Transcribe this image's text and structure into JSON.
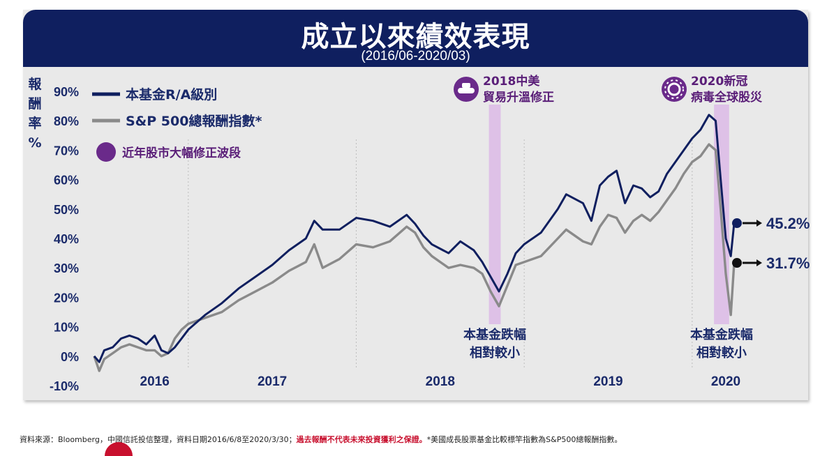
{
  "header": {
    "title": "成立以來績效表現",
    "subtitle": "(2016/06-2020/03)"
  },
  "colors": {
    "fund": "#0f1f5f",
    "sp500": "#8a8a8a",
    "band": "#d9b3e6",
    "legend_dot": "#6a2a8a",
    "annotation": "#5a1e78",
    "banner_bg": "#0f1f5f",
    "warning": "#c8102e"
  },
  "chart_data": {
    "type": "line",
    "title": "成立以來績效表現",
    "subtitle": "(2016/06-2020/03)",
    "ylabel": "報酬率%",
    "xlabel": "",
    "ylim": [
      -10,
      90
    ],
    "y_ticks": [
      "90%",
      "80%",
      "70%",
      "60%",
      "50%",
      "40%",
      "30%",
      "20%",
      "10%",
      "0%",
      "-10%"
    ],
    "y_tick_values": [
      90,
      80,
      70,
      60,
      50,
      40,
      30,
      20,
      10,
      0,
      -10
    ],
    "x_tick_labels": [
      "2016",
      "2017",
      "2018",
      "2019",
      "2020"
    ],
    "x_tick_positions": [
      2016.8,
      2017.5,
      2018.5,
      2019.5,
      2020.2
    ],
    "xlim": [
      2016.44,
      2020.25
    ],
    "x_gridlines": [
      2017.0,
      2018.0,
      2019.0,
      2020.0
    ],
    "legend": [
      {
        "label": "本基金R/A級別",
        "type": "line",
        "color": "#0f1f5f"
      },
      {
        "label": "S&P 500總報酬指數*",
        "type": "line",
        "color": "#8a8a8a"
      },
      {
        "label": "近年股市大幅修正波段",
        "type": "dot",
        "color": "#6a2a8a"
      }
    ],
    "legend_position": "top-left",
    "correction_bands": [
      {
        "from": 2018.79,
        "to": 2018.86,
        "label_top": "2018中美貿易升溫修正",
        "label_bottom": "本基金跌幅相對較小",
        "icon": "tank-icon"
      },
      {
        "from": 2020.13,
        "to": 2020.22,
        "label_top": "2020新冠病毒全球股災",
        "label_bottom": "本基金跌幅相對較小",
        "icon": "virus-icon"
      }
    ],
    "series": [
      {
        "name": "本基金R/A級別",
        "end_label": "45.2%",
        "points": [
          [
            2016.44,
            0
          ],
          [
            2016.47,
            -2
          ],
          [
            2016.5,
            2
          ],
          [
            2016.55,
            3
          ],
          [
            2016.6,
            6
          ],
          [
            2016.65,
            7
          ],
          [
            2016.7,
            6
          ],
          [
            2016.75,
            4
          ],
          [
            2016.8,
            7
          ],
          [
            2016.84,
            2
          ],
          [
            2016.88,
            1
          ],
          [
            2016.92,
            3
          ],
          [
            2016.96,
            6
          ],
          [
            2017.0,
            9
          ],
          [
            2017.1,
            14
          ],
          [
            2017.2,
            18
          ],
          [
            2017.3,
            23
          ],
          [
            2017.4,
            27
          ],
          [
            2017.5,
            31
          ],
          [
            2017.6,
            36
          ],
          [
            2017.7,
            40
          ],
          [
            2017.75,
            46
          ],
          [
            2017.8,
            43
          ],
          [
            2017.9,
            43
          ],
          [
            2018.0,
            47
          ],
          [
            2018.1,
            46
          ],
          [
            2018.2,
            44
          ],
          [
            2018.3,
            48
          ],
          [
            2018.35,
            45
          ],
          [
            2018.4,
            41
          ],
          [
            2018.45,
            38
          ],
          [
            2018.55,
            35
          ],
          [
            2018.62,
            39
          ],
          [
            2018.7,
            36
          ],
          [
            2018.75,
            32
          ],
          [
            2018.8,
            27
          ],
          [
            2018.85,
            22
          ],
          [
            2018.9,
            28
          ],
          [
            2018.95,
            35
          ],
          [
            2019.0,
            38
          ],
          [
            2019.1,
            42
          ],
          [
            2019.2,
            50
          ],
          [
            2019.25,
            55
          ],
          [
            2019.35,
            52
          ],
          [
            2019.4,
            46
          ],
          [
            2019.45,
            58
          ],
          [
            2019.5,
            61
          ],
          [
            2019.55,
            63
          ],
          [
            2019.6,
            52
          ],
          [
            2019.65,
            58
          ],
          [
            2019.7,
            57
          ],
          [
            2019.75,
            54
          ],
          [
            2019.8,
            56
          ],
          [
            2019.85,
            62
          ],
          [
            2019.9,
            66
          ],
          [
            2019.95,
            70
          ],
          [
            2020.0,
            74
          ],
          [
            2020.05,
            77
          ],
          [
            2020.1,
            82
          ],
          [
            2020.14,
            80
          ],
          [
            2020.17,
            60
          ],
          [
            2020.2,
            40
          ],
          [
            2020.23,
            34
          ],
          [
            2020.25,
            45.2
          ]
        ]
      },
      {
        "name": "S&P 500總報酬指數*",
        "end_label": "31.7%",
        "points": [
          [
            2016.44,
            0
          ],
          [
            2016.47,
            -5
          ],
          [
            2016.5,
            -1
          ],
          [
            2016.55,
            1
          ],
          [
            2016.6,
            3
          ],
          [
            2016.65,
            4
          ],
          [
            2016.7,
            3
          ],
          [
            2016.75,
            2
          ],
          [
            2016.8,
            2
          ],
          [
            2016.84,
            0
          ],
          [
            2016.88,
            1
          ],
          [
            2016.92,
            6
          ],
          [
            2016.96,
            9
          ],
          [
            2017.0,
            11
          ],
          [
            2017.1,
            13
          ],
          [
            2017.2,
            15
          ],
          [
            2017.3,
            19
          ],
          [
            2017.4,
            22
          ],
          [
            2017.5,
            25
          ],
          [
            2017.6,
            29
          ],
          [
            2017.7,
            32
          ],
          [
            2017.75,
            38
          ],
          [
            2017.8,
            30
          ],
          [
            2017.9,
            33
          ],
          [
            2018.0,
            38
          ],
          [
            2018.1,
            37
          ],
          [
            2018.2,
            39
          ],
          [
            2018.3,
            44
          ],
          [
            2018.35,
            42
          ],
          [
            2018.4,
            37
          ],
          [
            2018.45,
            34
          ],
          [
            2018.55,
            30
          ],
          [
            2018.62,
            31
          ],
          [
            2018.7,
            30
          ],
          [
            2018.75,
            28
          ],
          [
            2018.8,
            22
          ],
          [
            2018.85,
            17
          ],
          [
            2018.9,
            24
          ],
          [
            2018.95,
            31
          ],
          [
            2019.0,
            32
          ],
          [
            2019.1,
            34
          ],
          [
            2019.2,
            40
          ],
          [
            2019.25,
            43
          ],
          [
            2019.35,
            39
          ],
          [
            2019.4,
            38
          ],
          [
            2019.45,
            44
          ],
          [
            2019.5,
            48
          ],
          [
            2019.55,
            47
          ],
          [
            2019.6,
            42
          ],
          [
            2019.65,
            46
          ],
          [
            2019.7,
            48
          ],
          [
            2019.75,
            46
          ],
          [
            2019.8,
            49
          ],
          [
            2019.85,
            53
          ],
          [
            2019.9,
            57
          ],
          [
            2019.95,
            62
          ],
          [
            2020.0,
            66
          ],
          [
            2020.05,
            68
          ],
          [
            2020.1,
            72
          ],
          [
            2020.14,
            70
          ],
          [
            2020.17,
            50
          ],
          [
            2020.2,
            28
          ],
          [
            2020.23,
            14
          ],
          [
            2020.25,
            31.7
          ]
        ]
      }
    ]
  },
  "footer": {
    "source": "資料來源：Bloomberg，中國信託投信整理，資料日期2016/6/8至2020/3/30；",
    "warning": "過去報酬不代表未來投資獲利之保證。",
    "note": "*美國成長股票基金比較標竿指數為S&P500總報酬指數。"
  }
}
